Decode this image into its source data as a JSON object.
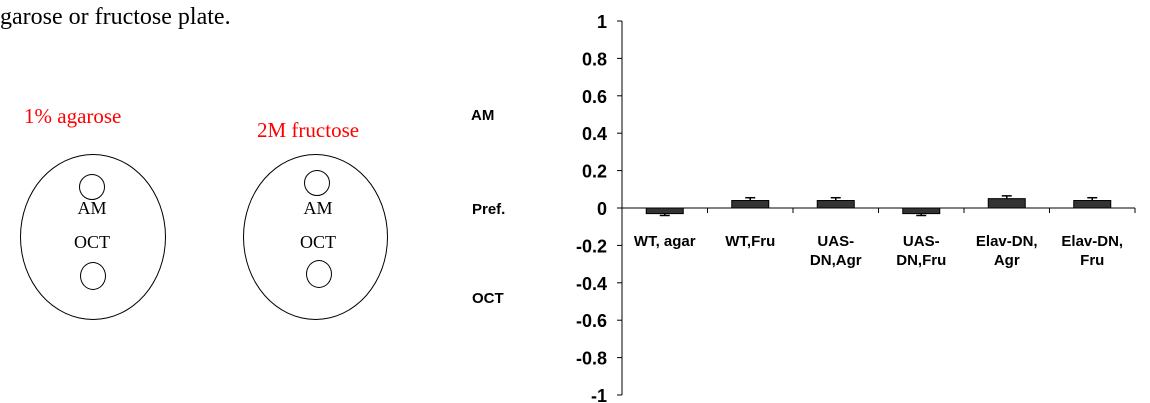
{
  "caption": "garose or fructose plate.",
  "plates": [
    {
      "label": "1% agarose",
      "top_text": "AM",
      "bottom_text": "OCT"
    },
    {
      "label": "2M fructose",
      "top_text": "AM",
      "bottom_text": "OCT"
    }
  ],
  "side_labels": {
    "am": "AM",
    "pref": "Pref.",
    "oct": "OCT"
  },
  "colors": {
    "plate_label": "#ff0000",
    "bar_fill": "#333333"
  },
  "chart_data": {
    "type": "bar",
    "categories": [
      [
        "WT, agar"
      ],
      [
        "WT,Fru"
      ],
      [
        "UAS-",
        "DN,Agr"
      ],
      [
        "UAS-",
        "DN,Fru"
      ],
      [
        "Elav-DN,",
        "Agr"
      ],
      [
        "Elav-DN,",
        "Fru"
      ]
    ],
    "values": [
      -0.03,
      0.04,
      0.04,
      -0.03,
      0.05,
      0.04
    ],
    "errors": [
      0.01,
      0.015,
      0.015,
      0.01,
      0.015,
      0.015
    ],
    "ylim": [
      -1,
      1
    ],
    "yticks": [
      "1",
      "0.8",
      "0.6",
      "0.4",
      "0.2",
      "0",
      "-0.2",
      "-0.4",
      "-0.6",
      "-0.8",
      "-1"
    ],
    "ytick_values": [
      1,
      0.8,
      0.6,
      0.4,
      0.2,
      0,
      -0.2,
      -0.4,
      -0.6,
      -0.8,
      -1
    ],
    "title": "",
    "xlabel": "",
    "ylabel": "",
    "grid": false
  }
}
